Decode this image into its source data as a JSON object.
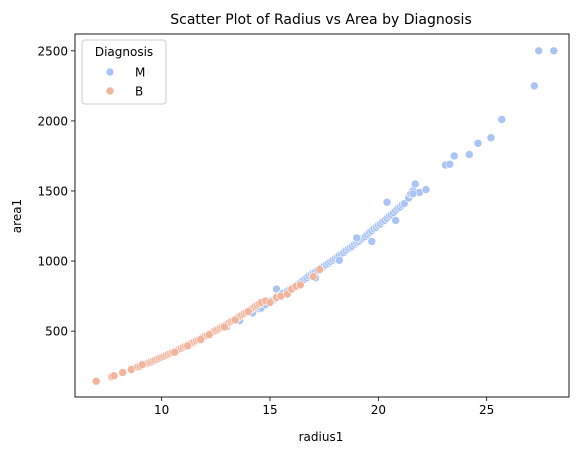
{
  "chart_data": {
    "type": "scatter",
    "title": "Scatter Plot of Radius vs Area by Diagnosis",
    "xlabel": "radius1",
    "ylabel": "area1",
    "xlim": [
      6.0,
      28.8
    ],
    "ylim": [
      30,
      2620
    ],
    "xticks": [
      10,
      15,
      20,
      25
    ],
    "yticks": [
      500,
      1000,
      1500,
      2000,
      2500
    ],
    "grid": false,
    "legend": {
      "title": "Diagnosis",
      "placement": "top-left",
      "entries": [
        {
          "label": "M",
          "color": "#a9c4f5"
        },
        {
          "label": "B",
          "color": "#f3b49c"
        }
      ]
    },
    "series": [
      {
        "name": "M",
        "color": "#a9c4f5",
        "points": [
          [
            13.0,
            530
          ],
          [
            13.6,
            575
          ],
          [
            14.2,
            630
          ],
          [
            14.5,
            660
          ],
          [
            14.6,
            665
          ],
          [
            14.8,
            690
          ],
          [
            15.0,
            705
          ],
          [
            15.1,
            720
          ],
          [
            15.2,
            725
          ],
          [
            15.3,
            735
          ],
          [
            15.4,
            745
          ],
          [
            15.3,
            800
          ],
          [
            15.5,
            760
          ],
          [
            15.6,
            770
          ],
          [
            15.8,
            785
          ],
          [
            15.9,
            795
          ],
          [
            16.0,
            805
          ],
          [
            16.1,
            815
          ],
          [
            16.2,
            825
          ],
          [
            16.3,
            835
          ],
          [
            16.4,
            845
          ],
          [
            16.5,
            860
          ],
          [
            16.6,
            870
          ],
          [
            16.7,
            880
          ],
          [
            16.8,
            895
          ],
          [
            16.9,
            905
          ],
          [
            17.0,
            915
          ],
          [
            17.1,
            925
          ],
          [
            17.2,
            935
          ],
          [
            17.3,
            945
          ],
          [
            17.4,
            955
          ],
          [
            17.5,
            965
          ],
          [
            17.6,
            975
          ],
          [
            17.7,
            985
          ],
          [
            17.8,
            995
          ],
          [
            17.9,
            1005
          ],
          [
            18.0,
            1015
          ],
          [
            18.1,
            1025
          ],
          [
            18.2,
            1040
          ],
          [
            18.3,
            1050
          ],
          [
            18.4,
            1060
          ],
          [
            18.5,
            1075
          ],
          [
            18.6,
            1085
          ],
          [
            18.7,
            1095
          ],
          [
            18.8,
            1105
          ],
          [
            18.9,
            1120
          ],
          [
            19.0,
            1130
          ],
          [
            19.1,
            1140
          ],
          [
            19.2,
            1155
          ],
          [
            19.3,
            1165
          ],
          [
            19.4,
            1175
          ],
          [
            19.5,
            1190
          ],
          [
            19.6,
            1205
          ],
          [
            19.7,
            1215
          ],
          [
            19.8,
            1230
          ],
          [
            19.9,
            1240
          ],
          [
            20.0,
            1255
          ],
          [
            20.1,
            1265
          ],
          [
            20.2,
            1280
          ],
          [
            20.3,
            1290
          ],
          [
            20.4,
            1305
          ],
          [
            20.5,
            1320
          ],
          [
            20.6,
            1330
          ],
          [
            20.7,
            1345
          ],
          [
            20.8,
            1360
          ],
          [
            20.9,
            1375
          ],
          [
            21.0,
            1385
          ],
          [
            21.1,
            1400
          ],
          [
            21.2,
            1410
          ],
          [
            21.4,
            1450
          ],
          [
            21.5,
            1480
          ],
          [
            21.6,
            1500
          ],
          [
            21.7,
            1550
          ],
          [
            21.9,
            1490
          ],
          [
            22.2,
            1510
          ],
          [
            20.8,
            1290
          ],
          [
            19.0,
            1165
          ],
          [
            19.7,
            1140
          ],
          [
            18.2,
            1005
          ],
          [
            17.1,
            880
          ],
          [
            20.4,
            1420
          ],
          [
            21.6,
            1480
          ],
          [
            23.1,
            1685
          ],
          [
            23.3,
            1690
          ],
          [
            23.5,
            1750
          ],
          [
            24.2,
            1760
          ],
          [
            24.6,
            1840
          ],
          [
            25.2,
            1880
          ],
          [
            25.7,
            2010
          ],
          [
            27.2,
            2250
          ],
          [
            27.4,
            2500
          ],
          [
            28.1,
            2500
          ]
        ]
      },
      {
        "name": "B",
        "color": "#f3b49c",
        "points": [
          [
            6.98,
            143
          ],
          [
            7.7,
            175
          ],
          [
            7.8,
            182
          ],
          [
            8.2,
            205
          ],
          [
            8.6,
            226
          ],
          [
            8.9,
            245
          ],
          [
            9.0,
            250
          ],
          [
            9.2,
            262
          ],
          [
            9.3,
            268
          ],
          [
            9.4,
            274
          ],
          [
            9.5,
            280
          ],
          [
            9.6,
            287
          ],
          [
            9.7,
            294
          ],
          [
            9.8,
            300
          ],
          [
            9.9,
            307
          ],
          [
            10.0,
            314
          ],
          [
            10.1,
            320
          ],
          [
            10.2,
            327
          ],
          [
            10.3,
            334
          ],
          [
            10.4,
            341
          ],
          [
            10.5,
            348
          ],
          [
            10.6,
            355
          ],
          [
            10.7,
            362
          ],
          [
            10.8,
            370
          ],
          [
            10.9,
            377
          ],
          [
            11.0,
            385
          ],
          [
            11.1,
            392
          ],
          [
            11.2,
            400
          ],
          [
            11.3,
            407
          ],
          [
            11.4,
            415
          ],
          [
            11.5,
            423
          ],
          [
            11.6,
            431
          ],
          [
            11.7,
            439
          ],
          [
            11.8,
            447
          ],
          [
            11.9,
            455
          ],
          [
            12.0,
            463
          ],
          [
            12.1,
            471
          ],
          [
            12.2,
            480
          ],
          [
            12.3,
            488
          ],
          [
            12.4,
            497
          ],
          [
            12.5,
            505
          ],
          [
            12.6,
            514
          ],
          [
            12.7,
            523
          ],
          [
            12.8,
            532
          ],
          [
            12.9,
            541
          ],
          [
            13.0,
            550
          ],
          [
            13.1,
            559
          ],
          [
            13.2,
            568
          ],
          [
            13.3,
            577
          ],
          [
            13.4,
            587
          ],
          [
            13.5,
            596
          ],
          [
            13.6,
            606
          ],
          [
            13.7,
            615
          ],
          [
            13.8,
            625
          ],
          [
            13.9,
            635
          ],
          [
            14.0,
            644
          ],
          [
            14.1,
            654
          ],
          [
            14.2,
            664
          ],
          [
            14.3,
            675
          ],
          [
            14.4,
            685
          ],
          [
            14.5,
            695
          ],
          [
            14.6,
            705
          ],
          [
            14.8,
            716
          ],
          [
            15.0,
            705
          ],
          [
            15.3,
            740
          ],
          [
            15.5,
            750
          ],
          [
            15.8,
            765
          ],
          [
            16.0,
            800
          ],
          [
            16.2,
            820
          ],
          [
            16.4,
            830
          ],
          [
            17.0,
            890
          ],
          [
            17.3,
            940
          ],
          [
            11.2,
            395
          ],
          [
            10.6,
            350
          ],
          [
            12.2,
            475
          ],
          [
            9.1,
            260
          ],
          [
            12.9,
            530
          ],
          [
            13.4,
            580
          ],
          [
            14.0,
            640
          ],
          [
            11.8,
            440
          ]
        ]
      }
    ]
  }
}
